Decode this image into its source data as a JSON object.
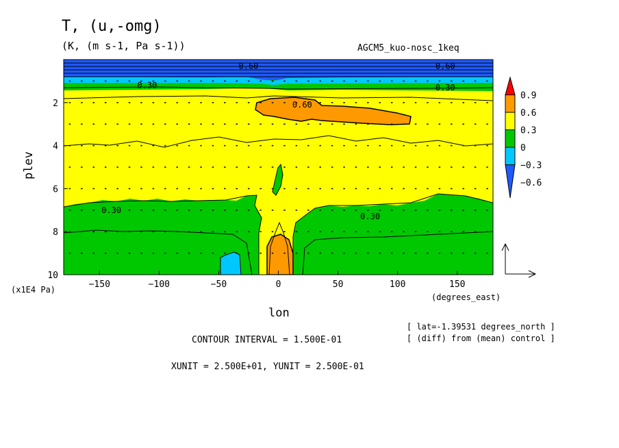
{
  "chart_data": {
    "type": "heatmap",
    "title": "T, (u,-omg)",
    "units_line": "(K, (m s-1, Pa s-1))",
    "experiment": "AGCM5_kuo-nosc_1keq",
    "xlabel": "lon",
    "xunit": "(degrees_east)",
    "ylabel": "plev",
    "yunit": "(x1E4 Pa)",
    "xlim": [
      -180,
      180
    ],
    "ylim": [
      10,
      0
    ],
    "xticks": [
      {
        "value": -150,
        "label": "−150"
      },
      {
        "value": -100,
        "label": "−100"
      },
      {
        "value": -50,
        "label": "−50"
      },
      {
        "value": 0,
        "label": "0"
      },
      {
        "value": 50,
        "label": "50"
      },
      {
        "value": 100,
        "label": "100"
      },
      {
        "value": 150,
        "label": "150"
      }
    ],
    "yticks": [
      {
        "value": 2,
        "label": "2"
      },
      {
        "value": 4,
        "label": "4"
      },
      {
        "value": 6,
        "label": "6"
      },
      {
        "value": 8,
        "label": "8"
      },
      {
        "value": 10,
        "label": "10"
      }
    ],
    "colorbar": {
      "levels": [
        {
          "value": 0.9,
          "label": "0.9"
        },
        {
          "value": 0.6,
          "label": "0.6"
        },
        {
          "value": 0.3,
          "label": "0.3"
        },
        {
          "value": 0,
          "label": "0"
        },
        {
          "value": -0.3,
          "label": "−0.3"
        },
        {
          "value": -0.6,
          "label": "−0.6"
        }
      ],
      "colors": [
        "#1e5aff",
        "#00c8ff",
        "#00c800",
        "#ffff00",
        "#ff9900",
        "#ff0000"
      ]
    },
    "contour_labels": [
      {
        "lon": -25,
        "plev": 0.3,
        "label": "0.60"
      },
      {
        "lon": 140,
        "plev": 0.3,
        "label": "0.60"
      },
      {
        "lon": -110,
        "plev": 1.2,
        "label": "0.30"
      },
      {
        "lon": 140,
        "plev": 1.3,
        "label": "0.30"
      },
      {
        "lon": 20,
        "plev": 2.1,
        "label": "0.60"
      },
      {
        "lon": -140,
        "plev": 7.0,
        "label": "0.30"
      },
      {
        "lon": 77,
        "plev": 7.3,
        "label": "0.30"
      }
    ],
    "contour_interval": "CONTOUR INTERVAL = 1.500E-01",
    "vector_units": "XUNIT = 2.500E+01, YUNIT = 2.500E-01",
    "lat_note": "[ lat=-1.39531 degrees_north ]",
    "diff_note": "[ (diff) from (mean) control ]"
  }
}
